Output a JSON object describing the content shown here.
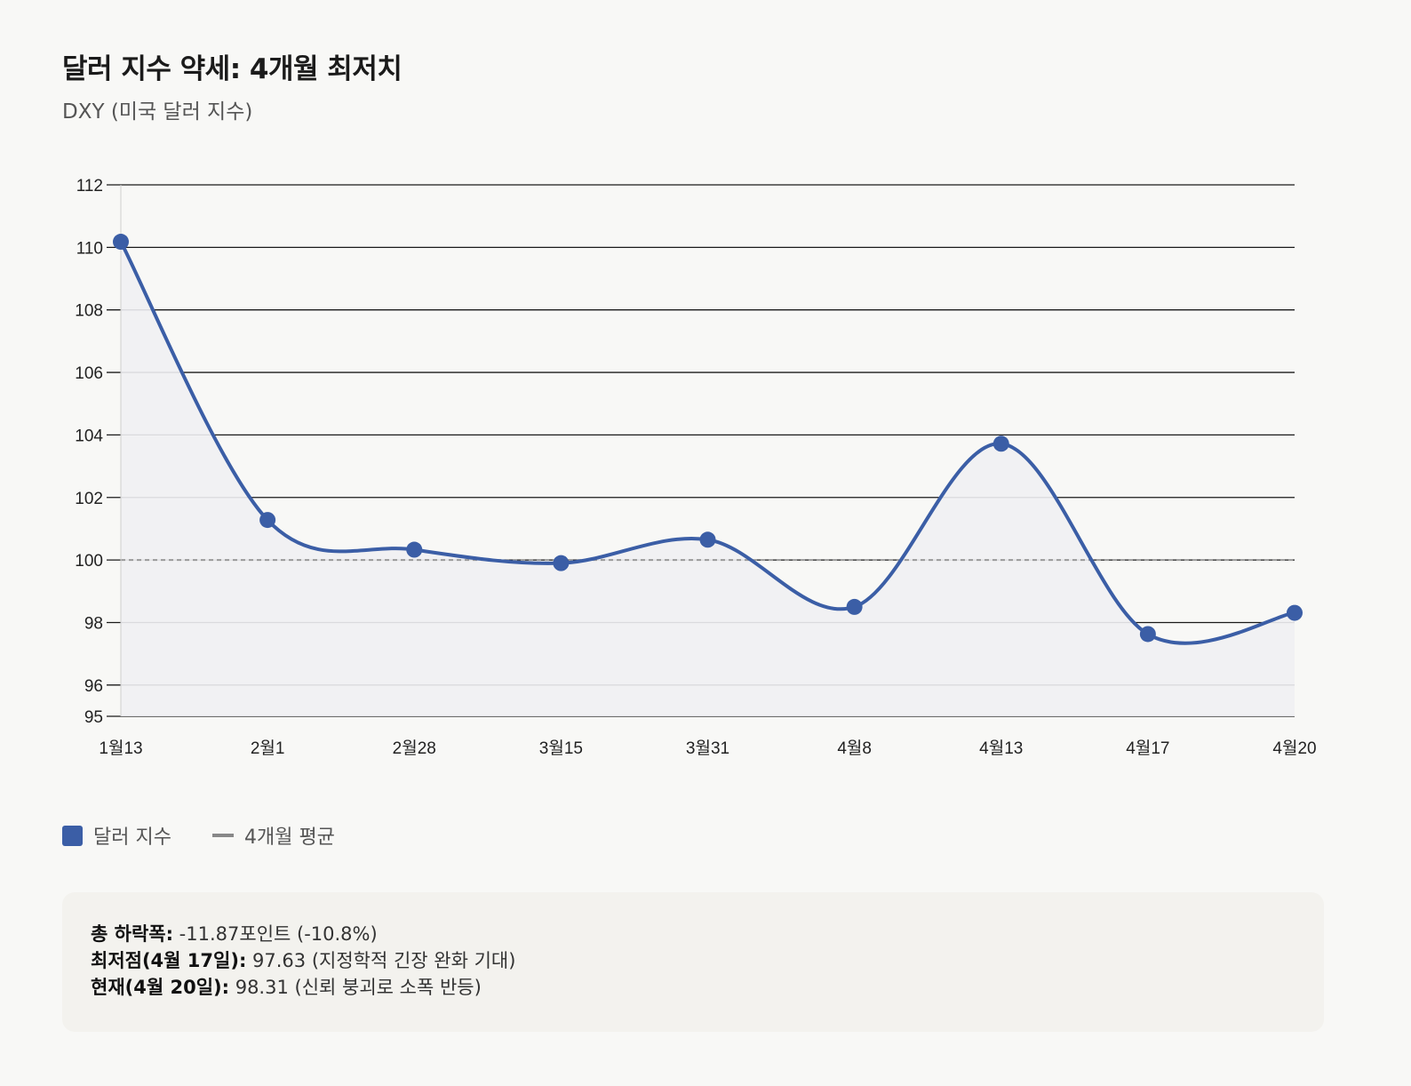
{
  "header": {
    "title": "달러 지수 약세: 4개월 최저치",
    "subtitle": "DXY (미국 달러 지수)"
  },
  "colors": {
    "series": "#3b5ea6",
    "average": "#999999",
    "fill": "#eff0f3"
  },
  "chart_data": {
    "type": "line",
    "categories": [
      "1월13",
      "2월1",
      "2월28",
      "3월15",
      "3월31",
      "4월8",
      "4월13",
      "4월17",
      "4월20"
    ],
    "series": [
      {
        "name": "달러 지수",
        "values": [
          110.18,
          101.28,
          100.33,
          99.9,
          100.65,
          98.5,
          103.72,
          97.63,
          98.31
        ]
      }
    ],
    "average": {
      "name": "4개월 평균",
      "value": 100
    },
    "yticks": [
      95,
      96,
      98,
      100,
      102,
      104,
      106,
      108,
      110,
      112
    ],
    "ylim": [
      95,
      112
    ],
    "grid": true,
    "legend": "bottom-left",
    "area_fill": true
  },
  "legend": {
    "series_label": "달러 지수",
    "average_label": "4개월 평균"
  },
  "notes": [
    {
      "label": "총 하락폭:",
      "text": " -11.87포인트 (-10.8%)"
    },
    {
      "label": "최저점(4월 17일):",
      "text": " 97.63 (지정학적 긴장 완화 기대)"
    },
    {
      "label": "현재(4월 20일):",
      "text": " 98.31 (신뢰 붕괴로 소폭 반등)"
    }
  ]
}
